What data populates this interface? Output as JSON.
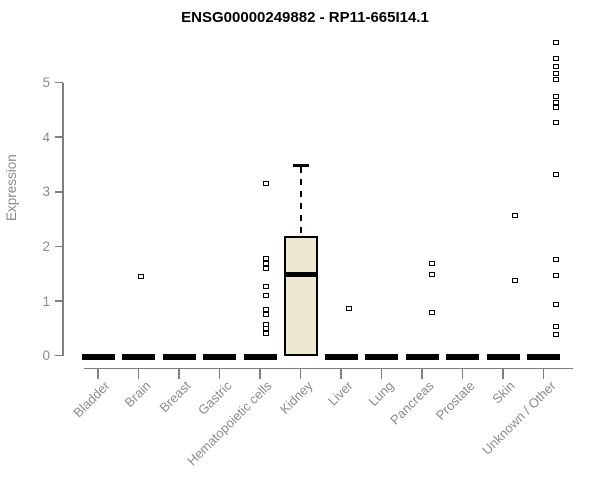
{
  "colors": {
    "box_fill": "#EDE8CF",
    "box_stroke": "#000000",
    "axis_line": "#7F7F7F",
    "axis_text": "#8B8B8B",
    "title_text": "#000000"
  },
  "chart_data": {
    "type": "box",
    "title": "ENSG00000249882 - RP11-665I14.1",
    "xlabel": "",
    "ylabel": "Expression",
    "ylim": [
      0,
      5.8
    ],
    "yticks": [
      0,
      1,
      2,
      3,
      4,
      5
    ],
    "grid": false,
    "legend": "none",
    "categories": [
      "Bladder",
      "Brain",
      "Breast",
      "Gastric",
      "Hematopoietic cells",
      "Kidney",
      "Liver",
      "Lung",
      "Pancreas",
      "Prostate",
      "Skin",
      "Unknown / Other"
    ],
    "boxes": [
      {
        "category": "Bladder",
        "median": 0,
        "q1": 0,
        "q3": 0,
        "whisker_low": 0,
        "whisker_high": 0,
        "outliers": []
      },
      {
        "category": "Brain",
        "median": 0,
        "q1": 0,
        "q3": 0,
        "whisker_low": 0,
        "whisker_high": 0,
        "outliers": [
          1.45
        ]
      },
      {
        "category": "Breast",
        "median": 0,
        "q1": 0,
        "q3": 0,
        "whisker_low": 0,
        "whisker_high": 0,
        "outliers": []
      },
      {
        "category": "Gastric",
        "median": 0,
        "q1": 0,
        "q3": 0,
        "whisker_low": 0,
        "whisker_high": 0,
        "outliers": []
      },
      {
        "category": "Hematopoietic cells",
        "median": 0,
        "q1": 0,
        "q3": 0,
        "whisker_low": 0,
        "whisker_high": 0,
        "outliers": [
          3.15,
          1.78,
          1.69,
          1.6,
          1.27,
          1.1,
          0.84,
          0.76,
          0.58,
          0.49,
          0.4
        ]
      },
      {
        "category": "Kidney",
        "median": 1.48,
        "q1": 0,
        "q3": 2.19,
        "whisker_low": 0,
        "whisker_high": 3.5,
        "outliers": []
      },
      {
        "category": "Liver",
        "median": 0,
        "q1": 0,
        "q3": 0,
        "whisker_low": 0,
        "whisker_high": 0,
        "outliers": [
          0.87
        ]
      },
      {
        "category": "Lung",
        "median": 0,
        "q1": 0,
        "q3": 0,
        "whisker_low": 0,
        "whisker_high": 0,
        "outliers": []
      },
      {
        "category": "Pancreas",
        "median": 0,
        "q1": 0,
        "q3": 0,
        "whisker_low": 0,
        "whisker_high": 0,
        "outliers": [
          1.69,
          1.49,
          0.8
        ]
      },
      {
        "category": "Prostate",
        "median": 0,
        "q1": 0,
        "q3": 0,
        "whisker_low": 0,
        "whisker_high": 0,
        "outliers": []
      },
      {
        "category": "Skin",
        "median": 0,
        "q1": 0,
        "q3": 0,
        "whisker_low": 0,
        "whisker_high": 0,
        "outliers": [
          2.57,
          1.38
        ]
      },
      {
        "category": "Unknown / Other",
        "median": 0,
        "q1": 0,
        "q3": 0,
        "whisker_low": 0,
        "whisker_high": 0,
        "outliers": [
          5.74,
          5.45,
          5.29,
          5.16,
          5.06,
          4.74,
          4.63,
          4.54,
          4.27,
          3.31,
          1.76,
          1.46,
          0.94,
          0.54,
          0.39
        ]
      }
    ]
  }
}
